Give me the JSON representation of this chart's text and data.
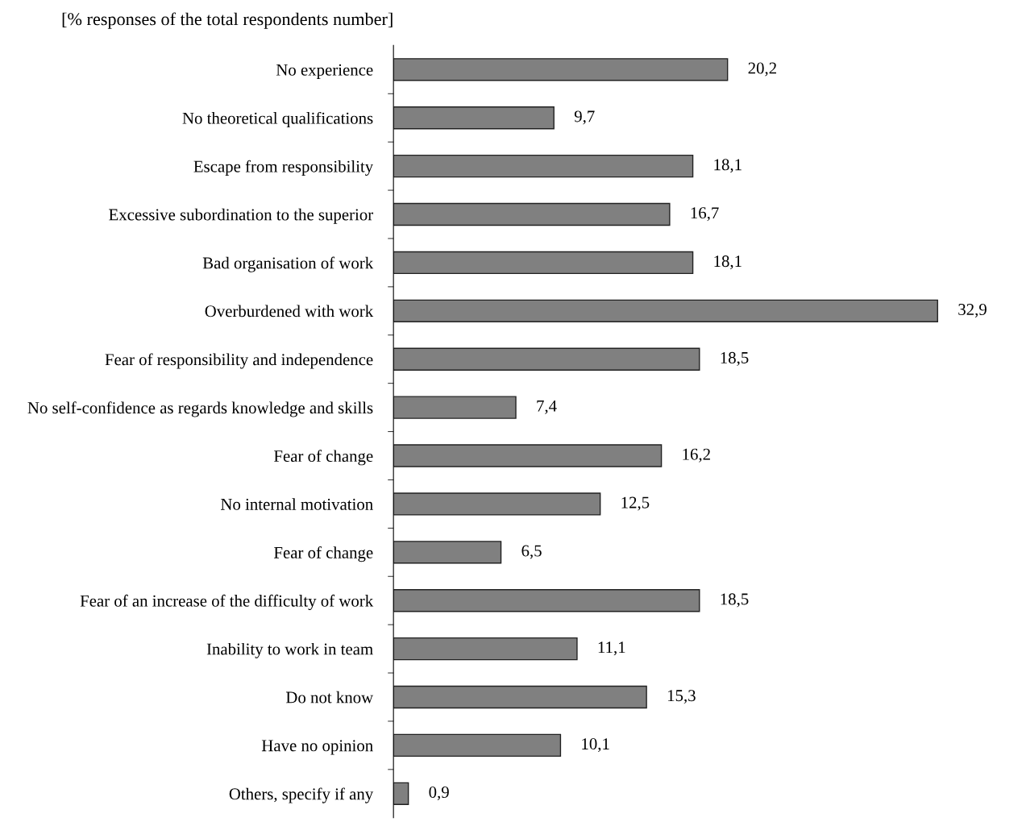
{
  "chart_data": {
    "type": "bar",
    "orientation": "horizontal",
    "title": "[% responses of the total respondents number]",
    "categories": [
      "No experience",
      "No theoretical qualifications",
      "Escape from responsibility",
      "Excessive subordination to the superior",
      "Bad organisation of work",
      "Overburdened with work",
      "Fear of responsibility and independence",
      "No self-confidence as regards knowledge and skills",
      "Fear of change",
      "No internal motivation",
      "Fear of change",
      "Fear of an increase of the difficulty of work",
      "Inability to work in team",
      "Do not know",
      "Have no opinion",
      "Others, specify if any"
    ],
    "values": [
      20.2,
      9.7,
      18.1,
      16.7,
      18.1,
      32.9,
      18.5,
      7.4,
      16.2,
      12.5,
      6.5,
      18.5,
      11.1,
      15.3,
      10.1,
      0.9
    ],
    "value_labels": [
      "20,2",
      "9,7",
      "18,1",
      "16,7",
      "18,1",
      "32,9",
      "18,5",
      "7,4",
      "16,2",
      "12,5",
      "6,5",
      "18,5",
      "11,1",
      "15,3",
      "10,1",
      "0,9"
    ],
    "color": "#808080",
    "grid": false,
    "legend": false
  }
}
